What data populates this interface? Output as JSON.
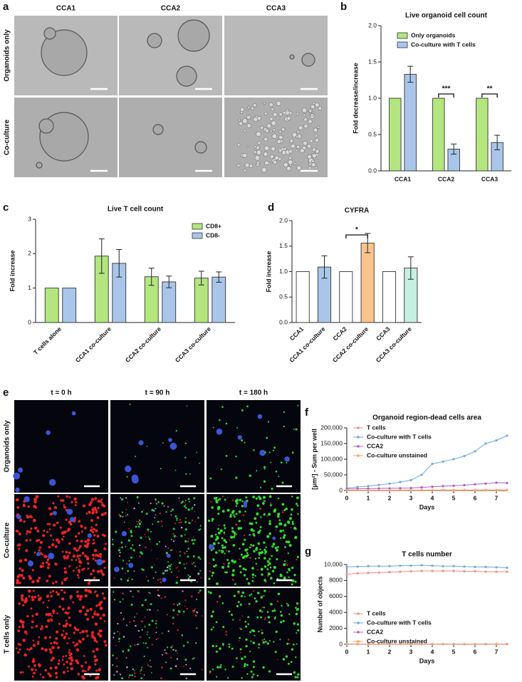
{
  "panel_letters": [
    "a",
    "b",
    "c",
    "d",
    "e",
    "f",
    "g"
  ],
  "micrographs": {
    "columns": [
      "CCA1",
      "CCA2",
      "CCA3"
    ],
    "rows": [
      "Organoids only",
      "Co-culture"
    ]
  },
  "fluorescence": {
    "columns": [
      "t = 0 h",
      "t = 90 h",
      "t = 180 h"
    ],
    "rows": [
      "Organoids only",
      "Co-culture",
      "T cells only"
    ]
  },
  "chart_data": [
    {
      "type": "bar",
      "title": "Live organoid cell count",
      "y_label": "Fold decrease/increase",
      "categories": [
        "CCA1",
        "CCA2",
        "CCA3"
      ],
      "series": [
        {
          "name": "Only organoids",
          "color": "#b3e67e",
          "values": [
            1,
            1,
            1
          ]
        },
        {
          "name": "Co-culture with T cells",
          "color": "#a9c6ea",
          "values": [
            1.33,
            0.3,
            0.39
          ],
          "errors": [
            0.11,
            0.07,
            0.1
          ]
        }
      ],
      "ylim": [
        0,
        2
      ],
      "yticks": [
        {
          "value": 0,
          "label": "0.0"
        },
        0.5,
        {
          "value": 1,
          "label": "1.0"
        },
        1.5,
        {
          "value": 2,
          "label": "2.0"
        }
      ],
      "annotations": [
        "***",
        "**"
      ]
    },
    {
      "type": "bar",
      "title": "Live T cell count",
      "y_label": "Fold increase",
      "categories": [
        "T cells alone",
        "CCA1 co-culture",
        "CCA2 co-culture",
        "CCA3 co-culture"
      ],
      "series": [
        {
          "name": "CD8+",
          "color": "#b3e67e",
          "values": [
            1,
            1.93,
            1.33,
            1.29
          ],
          "errors": [
            null,
            0.5,
            0.25,
            0.2
          ]
        },
        {
          "name": "CD8-",
          "color": "#a9c6ea",
          "values": [
            1,
            1.72,
            1.18,
            1.32
          ],
          "errors": [
            null,
            0.4,
            0.17,
            0.15
          ]
        }
      ],
      "ylim": [
        0,
        3
      ],
      "yticks": [
        0,
        1,
        2,
        3
      ]
    },
    {
      "type": "bar",
      "title": "CYFRA",
      "y_label": "Fold increase",
      "categories": [
        "CCA1",
        "CCA1 co-culture",
        "CCA2",
        "CCA2 co-culture",
        "CCA3",
        "CCA3 co-culture"
      ],
      "values": [
        1,
        1.09,
        1,
        1.56,
        1,
        1.07
      ],
      "errors": [
        null,
        0.22,
        null,
        0.19,
        null,
        0.22
      ],
      "colors": [
        "#ffffff",
        "#a9c6ea",
        "#ffffff",
        "#f9c48c",
        "#ffffff",
        "#c5efe0"
      ],
      "ylim": [
        0,
        2
      ],
      "yticks": [
        {
          "value": 0,
          "label": "0.0"
        },
        0.5,
        {
          "value": 1,
          "label": "1.0"
        },
        1.5,
        {
          "value": 2,
          "label": "2.0"
        }
      ],
      "annotations": [
        "*"
      ]
    },
    {
      "type": "line",
      "title": "Organoid region-dead cells area",
      "y_label": "[µm²] - Sum per well",
      "x_label": "Days",
      "x": [
        0,
        0.5,
        1,
        1.5,
        2,
        2.5,
        3,
        3.5,
        4,
        4.5,
        5,
        5.5,
        6,
        6.5,
        7,
        7.5
      ],
      "series": [
        {
          "name": "T cells",
          "color": "#f08a8a",
          "values": [
            1000,
            1000,
            1200,
            1200,
            1300,
            1300,
            1400,
            1500,
            1500,
            1600,
            1600,
            1700,
            1800,
            1800,
            1900,
            2000
          ]
        },
        {
          "name": "Co-culture with T cells",
          "color": "#6fa8dc",
          "values": [
            8000,
            11000,
            14000,
            18000,
            22000,
            27000,
            33000,
            50000,
            85000,
            92000,
            100000,
            110000,
            125000,
            150000,
            160000,
            175000
          ]
        },
        {
          "name": "CCA2",
          "color": "#b05ccc",
          "values": [
            5000,
            5500,
            6000,
            6500,
            7000,
            7500,
            8000,
            10000,
            12000,
            14000,
            15000,
            17000,
            20000,
            22000,
            25000,
            24000
          ]
        },
        {
          "name": "Co-culture unstained",
          "color": "#f5a55a",
          "values": [
            500,
            500,
            500,
            600,
            600,
            600,
            700,
            700,
            700,
            800,
            800,
            800,
            900,
            900,
            900,
            1000
          ]
        }
      ],
      "xlim": [
        0,
        7.5
      ],
      "xticks": [
        0,
        1,
        2,
        3,
        4,
        5,
        6,
        7
      ],
      "ylim": [
        0,
        200000
      ],
      "yticks": [
        0,
        {
          "value": 50000,
          "label": "50,000"
        },
        {
          "value": 100000,
          "label": "100,000"
        },
        {
          "value": 150000,
          "label": "150,000"
        },
        {
          "value": 200000,
          "label": "200,000"
        }
      ]
    },
    {
      "type": "line",
      "title": "T cells number",
      "y_label": "Number of objects",
      "x_label": "Days",
      "x": [
        0,
        0.5,
        1,
        1.5,
        2,
        2.5,
        3,
        3.5,
        4,
        4.5,
        5,
        5.5,
        6,
        6.5,
        7,
        7.5
      ],
      "series": [
        {
          "name": "T cells",
          "color": "#f08a8a",
          "values": [
            8800,
            8900,
            8950,
            9000,
            9050,
            9100,
            9150,
            9200,
            9200,
            9200,
            9200,
            9150,
            9150,
            9100,
            9100,
            9100
          ]
        },
        {
          "name": "Co-culture with T cells",
          "color": "#6fa8dc",
          "values": [
            9700,
            9750,
            9800,
            9800,
            9800,
            9850,
            9850,
            9900,
            9850,
            9800,
            9800,
            9750,
            9700,
            9700,
            9650,
            9600
          ]
        },
        {
          "name": "CCA2",
          "color": "#b05ccc",
          "values": [
            20,
            20,
            20,
            20,
            20,
            20,
            20,
            20,
            20,
            20,
            20,
            20,
            20,
            20,
            20,
            20
          ]
        },
        {
          "name": "Co-culture unstained",
          "color": "#f5a55a",
          "values": [
            10,
            10,
            10,
            10,
            10,
            10,
            10,
            10,
            10,
            10,
            10,
            10,
            10,
            10,
            10,
            10
          ]
        }
      ],
      "xlim": [
        0,
        7.5
      ],
      "xticks": [
        0,
        1,
        2,
        3,
        4,
        5,
        6,
        7
      ],
      "ylim": [
        0,
        10000
      ],
      "yticks": [
        0,
        2000,
        4000,
        6000,
        8000,
        {
          "value": 10000,
          "label": "10,000"
        }
      ]
    }
  ]
}
